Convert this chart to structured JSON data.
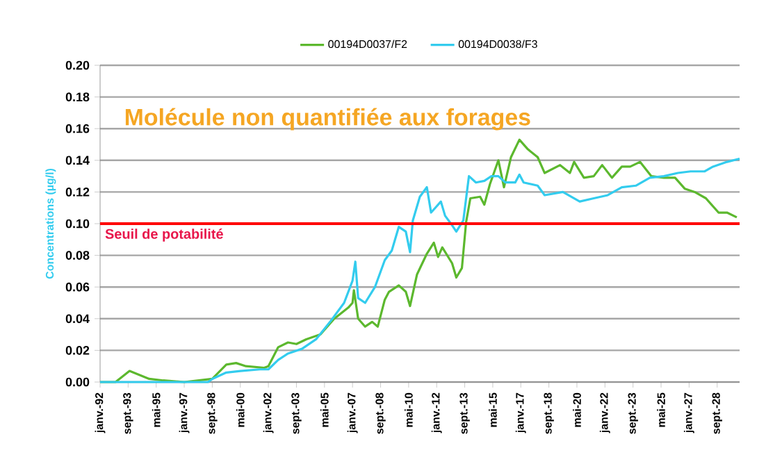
{
  "chart_data": {
    "type": "line",
    "ylabel": "Concentrations (µg/l)",
    "annotations": [
      "Molécule non quantifiée aux forages"
    ],
    "xlim": [
      "1992-01",
      "2030-01"
    ],
    "xticks": [
      {
        "value": "1992-01",
        "label": "janv.-92"
      },
      {
        "value": "1993-09",
        "label": "sept.-93"
      },
      {
        "value": "1995-05",
        "label": "mai-95"
      },
      {
        "value": "1997-01",
        "label": "janv.-97"
      },
      {
        "value": "1998-09",
        "label": "sept.-98"
      },
      {
        "value": "2000-05",
        "label": "mai-00"
      },
      {
        "value": "2002-01",
        "label": "janv.-02"
      },
      {
        "value": "2003-09",
        "label": "sept.-03"
      },
      {
        "value": "2005-05",
        "label": "mai-05"
      },
      {
        "value": "2007-01",
        "label": "janv.-07"
      },
      {
        "value": "2008-09",
        "label": "sept.-08"
      },
      {
        "value": "2010-05",
        "label": "mai-10"
      },
      {
        "value": "2012-01",
        "label": "janv.-12"
      },
      {
        "value": "2013-09",
        "label": "sept.-13"
      },
      {
        "value": "2015-05",
        "label": "mai-15"
      },
      {
        "value": "2017-01",
        "label": "janv.-17"
      },
      {
        "value": "2018-09",
        "label": "sept.-18"
      },
      {
        "value": "2020-05",
        "label": "mai-20"
      },
      {
        "value": "2022-01",
        "label": "janv.-22"
      },
      {
        "value": "2023-09",
        "label": "sept.-23"
      },
      {
        "value": "2025-05",
        "label": "mai-25"
      },
      {
        "value": "2027-01",
        "label": "janv.-27"
      },
      {
        "value": "2028-09",
        "label": "sept.-28"
      }
    ],
    "ylim": [
      0,
      0.2
    ],
    "yticks": [
      {
        "value": 0,
        "label": "0.00"
      },
      {
        "value": 0.02,
        "label": "0.02"
      },
      {
        "value": 0.04,
        "label": "0.04"
      },
      {
        "value": 0.06,
        "label": "0.06"
      },
      {
        "value": 0.08,
        "label": "0.08"
      },
      {
        "value": 0.1,
        "label": "0.10"
      },
      {
        "value": 0.12,
        "label": "0.12"
      },
      {
        "value": 0.14,
        "label": "0.14"
      },
      {
        "value": 0.16,
        "label": "0.16"
      },
      {
        "value": 0.18,
        "label": "0.18"
      },
      {
        "value": 0.2,
        "label": "0.20"
      }
    ],
    "grid": "y",
    "legend": "top",
    "marker": "none",
    "line_style": "solid",
    "ref_lines": [
      {
        "axis": "y",
        "value": 0.1,
        "label": "Seuil de potabilité",
        "color": "#ff0000"
      }
    ],
    "series": [
      {
        "name": "00194D0037/F2",
        "color": "#5cb82e",
        "x": [
          "1992-01",
          "1992-12",
          "1993-10",
          "1994-12",
          "1995-10",
          "1997-01",
          "1998-09",
          "1999-07",
          "2000-02",
          "2000-09",
          "2001-10",
          "2002-01",
          "2002-08",
          "2003-03",
          "2003-09",
          "2004-04",
          "2005-02",
          "2005-12",
          "2006-10",
          "2007-01",
          "2007-02",
          "2007-05",
          "2007-10",
          "2008-03",
          "2008-07",
          "2008-12",
          "2009-03",
          "2009-10",
          "2010-03",
          "2010-06",
          "2010-11",
          "2011-06",
          "2011-11",
          "2012-02",
          "2012-05",
          "2012-12",
          "2013-03",
          "2013-07",
          "2013-10",
          "2014-01",
          "2014-08",
          "2014-11",
          "2015-03",
          "2015-09",
          "2016-01",
          "2016-06",
          "2016-12",
          "2017-06",
          "2018-01",
          "2018-06",
          "2019-05",
          "2019-12",
          "2020-03",
          "2020-10",
          "2021-05",
          "2021-11",
          "2022-06",
          "2023-01",
          "2023-07",
          "2024-02",
          "2024-10",
          "2025-07",
          "2026-03",
          "2026-10",
          "2027-05",
          "2028-01",
          "2028-10",
          "2029-04",
          "2029-11"
        ],
        "values": [
          0,
          0,
          0.007,
          0.002,
          0.001,
          0,
          0.002,
          0.011,
          0.012,
          0.01,
          0.009,
          0.01,
          0.022,
          0.025,
          0.024,
          0.027,
          0.03,
          0.04,
          0.047,
          0.05,
          0.058,
          0.04,
          0.035,
          0.038,
          0.035,
          0.052,
          0.057,
          0.061,
          0.057,
          0.048,
          0.068,
          0.081,
          0.088,
          0.079,
          0.085,
          0.075,
          0.066,
          0.072,
          0.101,
          0.116,
          0.117,
          0.112,
          0.125,
          0.14,
          0.123,
          0.142,
          0.153,
          0.147,
          0.142,
          0.132,
          0.137,
          0.132,
          0.139,
          0.129,
          0.13,
          0.137,
          0.129,
          0.136,
          0.136,
          0.139,
          0.13,
          0.129,
          0.129,
          0.122,
          0.12,
          0.116,
          0.107,
          0.107,
          0.104
        ]
      },
      {
        "name": "00194D0038/F3",
        "color": "#33ccee",
        "x": [
          "1992-01",
          "1998-06",
          "1998-09",
          "1999-07",
          "2000-05",
          "2001-07",
          "2002-01",
          "2002-08",
          "2003-03",
          "2004-01",
          "2004-11",
          "2005-09",
          "2006-07",
          "2007-01",
          "2007-03",
          "2007-05",
          "2007-10",
          "2008-05",
          "2008-12",
          "2009-05",
          "2009-10",
          "2010-03",
          "2010-06",
          "2010-08",
          "2011-01",
          "2011-06",
          "2011-09",
          "2011-12",
          "2012-04",
          "2012-07",
          "2012-12",
          "2013-03",
          "2013-08",
          "2013-12",
          "2014-05",
          "2014-11",
          "2015-04",
          "2015-09",
          "2016-02",
          "2016-09",
          "2016-12",
          "2017-03",
          "2018-01",
          "2018-06",
          "2019-07",
          "2020-07",
          "2021-05",
          "2022-03",
          "2023-01",
          "2023-11",
          "2024-09",
          "2025-07",
          "2026-05",
          "2027-02",
          "2027-12",
          "2028-06",
          "2029-04",
          "2030-01"
        ],
        "values": [
          0,
          0,
          0.002,
          0.006,
          0.007,
          0.008,
          0.008,
          0.014,
          0.018,
          0.021,
          0.027,
          0.038,
          0.05,
          0.064,
          0.076,
          0.053,
          0.05,
          0.06,
          0.077,
          0.083,
          0.098,
          0.095,
          0.082,
          0.102,
          0.117,
          0.123,
          0.107,
          0.11,
          0.114,
          0.105,
          0.099,
          0.095,
          0.102,
          0.13,
          0.126,
          0.127,
          0.13,
          0.13,
          0.126,
          0.126,
          0.131,
          0.126,
          0.124,
          0.118,
          0.12,
          0.114,
          0.116,
          0.118,
          0.123,
          0.124,
          0.129,
          0.13,
          0.132,
          0.133,
          0.133,
          0.136,
          0.139,
          0.141
        ]
      }
    ]
  }
}
